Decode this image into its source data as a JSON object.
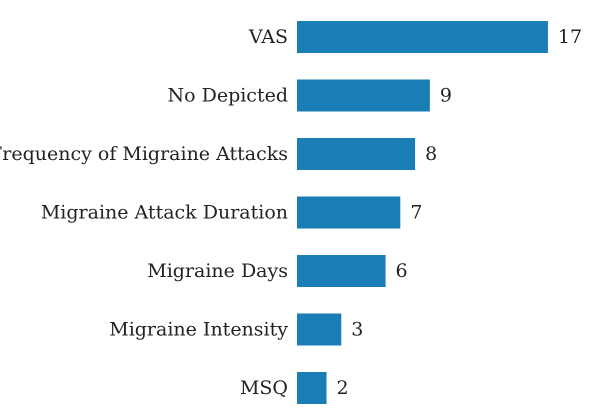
{
  "chart_data": {
    "type": "bar",
    "orientation": "horizontal",
    "categories": [
      "VAS",
      "No Depicted",
      "Frequency of Migraine Attacks",
      "Migraine Attack Duration",
      "Migraine Days",
      "Migraine Intensity",
      "MSQ"
    ],
    "values": [
      17,
      9,
      8,
      7,
      6,
      3,
      2
    ],
    "bar_color": "#1a7db6",
    "show_data_labels": true,
    "title": "",
    "xlabel": "",
    "ylabel": "",
    "grid": false,
    "legend": "none"
  }
}
